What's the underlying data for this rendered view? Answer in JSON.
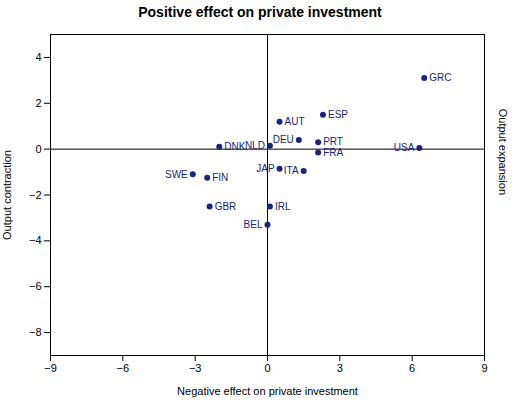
{
  "chart_data": {
    "type": "scatter",
    "title": "Positive effect on private investment",
    "xlabel": "Negative effect on private investment",
    "ylabel": "Output contraction",
    "y2label": "Output expansion",
    "color": "#1a237e",
    "labels": [
      "GRC",
      "ESP",
      "AUT",
      "DEU",
      "PRT",
      "NLD",
      "DNK",
      "FRA",
      "USA",
      "JAP",
      "ITA",
      "SWE",
      "FIN",
      "GBR",
      "IRL",
      "BEL"
    ],
    "x": [
      6.5,
      2.3,
      0.5,
      1.3,
      2.1,
      0.1,
      -2.0,
      2.1,
      6.3,
      0.5,
      1.5,
      -3.1,
      -2.5,
      -2.4,
      0.1,
      0.0
    ],
    "y": [
      3.1,
      1.5,
      1.2,
      0.4,
      0.3,
      0.15,
      0.1,
      -0.15,
      0.05,
      -0.85,
      -0.95,
      -1.1,
      -1.25,
      -2.5,
      -2.5,
      -3.3
    ],
    "xlim": [
      -9,
      9
    ],
    "ylim": [
      -9,
      5
    ],
    "xticks": [
      -9,
      -6,
      -3,
      0,
      3,
      6,
      9
    ],
    "yticks": [
      -8,
      -6,
      -4,
      -2,
      0,
      2,
      4
    ]
  }
}
